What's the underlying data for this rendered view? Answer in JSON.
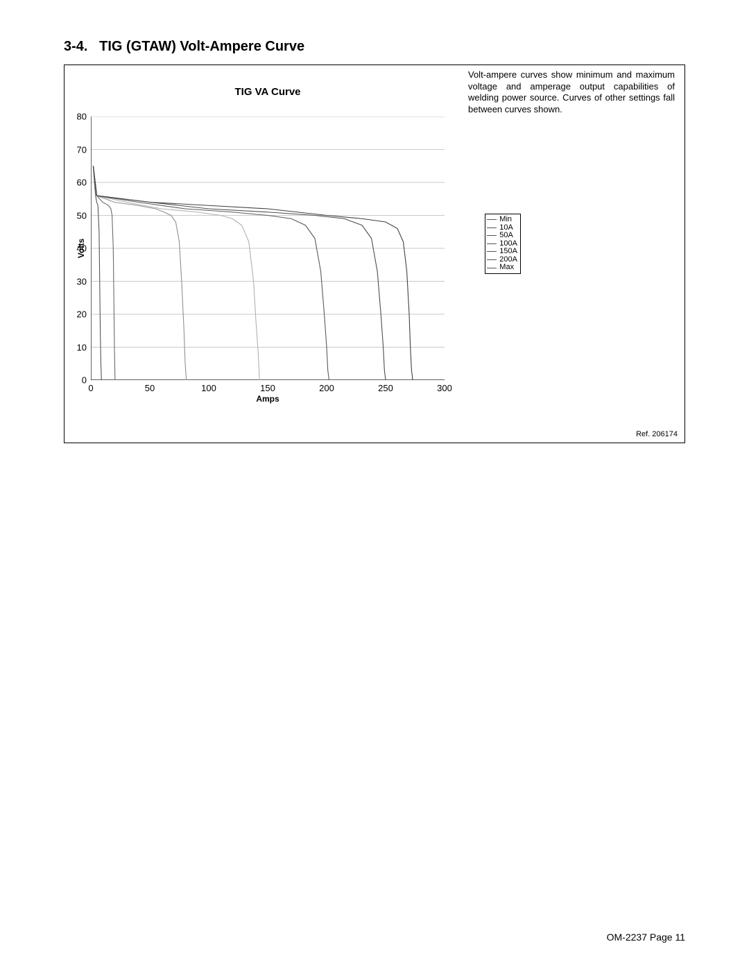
{
  "section": {
    "number": "3-4.",
    "title": "TIG (GTAW) Volt-Ampere Curve"
  },
  "chart": {
    "type": "line",
    "title": "TIG VA Curve",
    "xlabel": "Amps",
    "ylabel": "Volts",
    "xlim": [
      0,
      300
    ],
    "ylim": [
      0,
      80
    ],
    "xtick_step": 50,
    "ytick_step": 10,
    "xticks": [
      0,
      50,
      100,
      150,
      200,
      250,
      300
    ],
    "yticks": [
      0,
      10,
      20,
      30,
      40,
      50,
      60,
      70,
      80
    ],
    "background_color": "#ffffff",
    "grid_color": "#b8b8b8",
    "axis_color": "#000000",
    "tick_fontsize": 13,
    "label_fontsize": 12,
    "title_fontsize": 15,
    "line_width": 1.1,
    "series": [
      {
        "name": "Min",
        "color": "#555555",
        "points": [
          [
            2,
            65
          ],
          [
            4,
            56
          ],
          [
            5,
            54
          ],
          [
            6,
            53
          ],
          [
            7,
            45
          ],
          [
            7.5,
            30
          ],
          [
            8,
            15
          ],
          [
            8.5,
            5
          ],
          [
            9,
            0
          ]
        ]
      },
      {
        "name": "10A",
        "color": "#6a6a6a",
        "points": [
          [
            2,
            65
          ],
          [
            5,
            56
          ],
          [
            10,
            54
          ],
          [
            15,
            53
          ],
          [
            17,
            52
          ],
          [
            18,
            50
          ],
          [
            19,
            40
          ],
          [
            19.5,
            25
          ],
          [
            20,
            10
          ],
          [
            20.5,
            0
          ]
        ]
      },
      {
        "name": "50A",
        "color": "#909090",
        "points": [
          [
            2,
            65
          ],
          [
            5,
            56
          ],
          [
            20,
            54
          ],
          [
            40,
            53
          ],
          [
            55,
            52
          ],
          [
            62,
            51
          ],
          [
            68,
            50
          ],
          [
            72,
            48
          ],
          [
            75,
            42
          ],
          [
            77,
            30
          ],
          [
            79,
            15
          ],
          [
            80,
            5
          ],
          [
            81,
            0
          ]
        ]
      },
      {
        "name": "100A",
        "color": "#b0b0b0",
        "points": [
          [
            2,
            65
          ],
          [
            5,
            56
          ],
          [
            30,
            54
          ],
          [
            60,
            52
          ],
          [
            90,
            51
          ],
          [
            110,
            50
          ],
          [
            120,
            49
          ],
          [
            128,
            47
          ],
          [
            134,
            42
          ],
          [
            138,
            30
          ],
          [
            140,
            18
          ],
          [
            142,
            8
          ],
          [
            143,
            0
          ]
        ]
      },
      {
        "name": "150A",
        "color": "#5a5a5a",
        "points": [
          [
            2,
            65
          ],
          [
            5,
            56
          ],
          [
            40,
            54
          ],
          [
            80,
            52
          ],
          [
            120,
            51
          ],
          [
            150,
            50
          ],
          [
            170,
            49
          ],
          [
            182,
            47
          ],
          [
            190,
            43
          ],
          [
            195,
            33
          ],
          [
            198,
            20
          ],
          [
            200,
            10
          ],
          [
            201,
            3
          ],
          [
            202,
            0
          ]
        ]
      },
      {
        "name": "200A",
        "color": "#4d4d4d",
        "points": [
          [
            2,
            65
          ],
          [
            5,
            56
          ],
          [
            50,
            54
          ],
          [
            100,
            52
          ],
          [
            150,
            51
          ],
          [
            190,
            50
          ],
          [
            215,
            49
          ],
          [
            230,
            47
          ],
          [
            238,
            43
          ],
          [
            243,
            33
          ],
          [
            246,
            20
          ],
          [
            248,
            10
          ],
          [
            249,
            3
          ],
          [
            250,
            0
          ]
        ]
      },
      {
        "name": "Max",
        "color": "#404040",
        "points": [
          [
            2,
            65
          ],
          [
            5,
            56
          ],
          [
            50,
            54
          ],
          [
            100,
            53
          ],
          [
            150,
            52
          ],
          [
            200,
            50
          ],
          [
            230,
            49
          ],
          [
            250,
            48
          ],
          [
            260,
            46
          ],
          [
            265,
            42
          ],
          [
            268,
            33
          ],
          [
            270,
            20
          ],
          [
            271,
            10
          ],
          [
            272,
            3
          ],
          [
            273,
            0
          ]
        ]
      }
    ],
    "legend": {
      "items": [
        "Min",
        "10A",
        "50A",
        "100A",
        "150A",
        "200A",
        "Max"
      ],
      "border_color": "#000000",
      "fontsize": 11
    }
  },
  "description": "Volt-ampere curves show minimum and maximum voltage and amperage output capabilities of welding power source. Curves of other settings fall between curves shown.",
  "reference": "Ref. 206174",
  "footer": "OM-2237 Page 11"
}
